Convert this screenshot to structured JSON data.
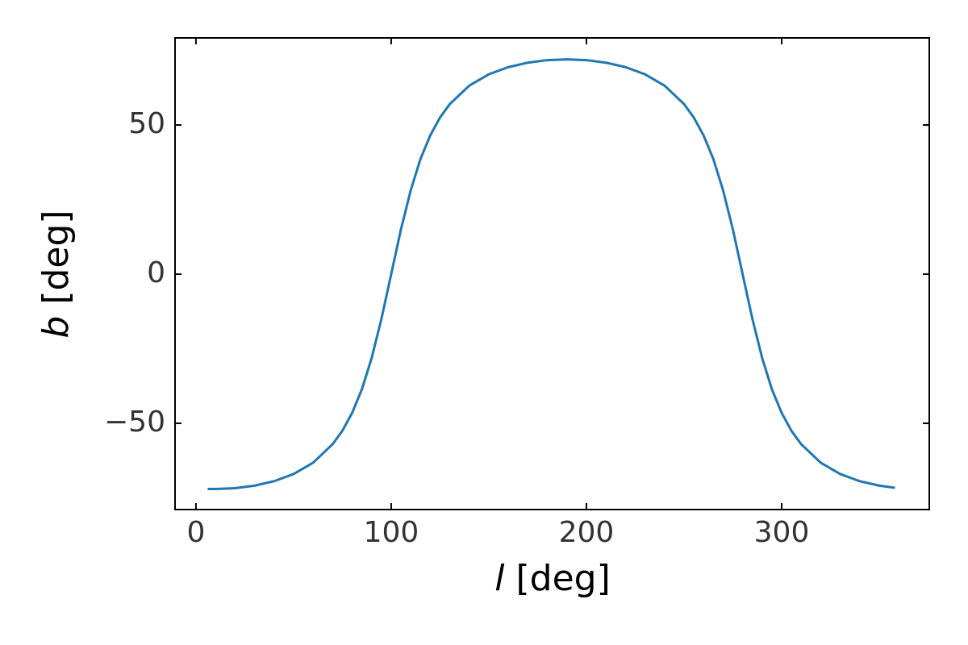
{
  "chart_data": {
    "type": "line",
    "xlabel": {
      "symbol": "l",
      "unit": "[deg]"
    },
    "ylabel": {
      "symbol": "b",
      "unit": "[deg]"
    },
    "xlim": [
      -10.7,
      375.6
    ],
    "ylim": [
      -78.9,
      79.2
    ],
    "xticks": [
      0,
      100,
      200,
      300
    ],
    "yticks": [
      {
        "value": -50,
        "label": "−50"
      },
      0,
      50
    ],
    "x": [
      6,
      10,
      20,
      30,
      40,
      50,
      60,
      70,
      75,
      80,
      85,
      90,
      95,
      100,
      105,
      110,
      115,
      120,
      125,
      130,
      140,
      150,
      160,
      170,
      180,
      190,
      200,
      210,
      220,
      230,
      240,
      250,
      255,
      260,
      265,
      270,
      275,
      280,
      285,
      290,
      295,
      300,
      305,
      310,
      320,
      330,
      340,
      350,
      358
    ],
    "series": [
      {
        "color": "#1f77b4",
        "values": [
          -72.0,
          -72.0,
          -71.75,
          -70.9,
          -69.4,
          -67.0,
          -63.2,
          -57.0,
          -52.5,
          -46.5,
          -38.6,
          -28.1,
          -15.0,
          0,
          15.0,
          28.1,
          38.6,
          46.5,
          52.5,
          57.0,
          63.2,
          67.0,
          69.4,
          70.9,
          71.75,
          72.0,
          71.75,
          70.9,
          69.4,
          67.0,
          63.2,
          57.0,
          52.5,
          46.5,
          38.6,
          28.1,
          15.0,
          0,
          -15.0,
          -28.1,
          -38.6,
          -46.5,
          -52.5,
          -57.0,
          -63.2,
          -67.0,
          -69.4,
          -70.9,
          -71.6
        ]
      }
    ]
  }
}
